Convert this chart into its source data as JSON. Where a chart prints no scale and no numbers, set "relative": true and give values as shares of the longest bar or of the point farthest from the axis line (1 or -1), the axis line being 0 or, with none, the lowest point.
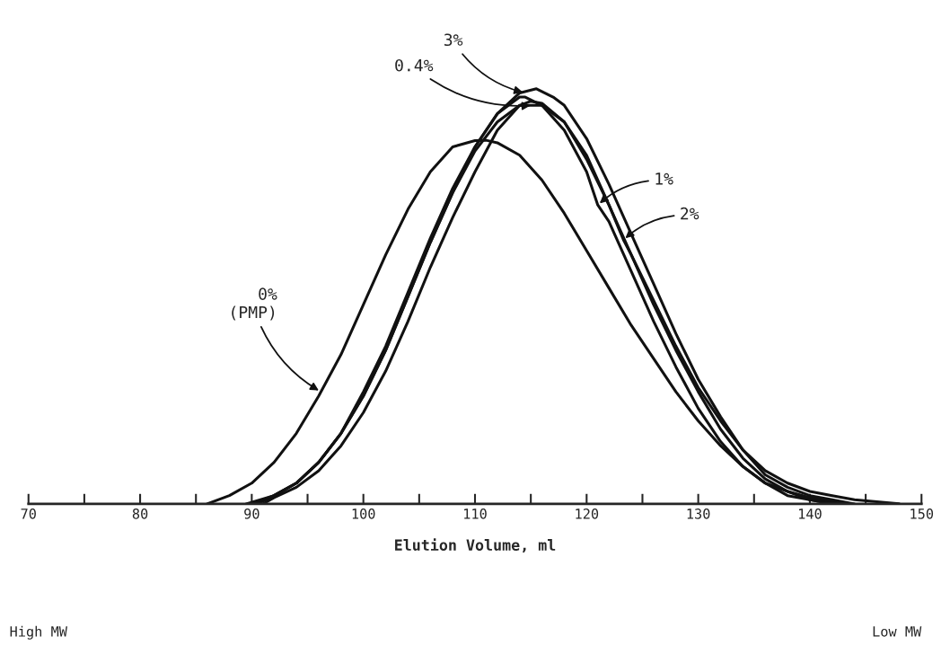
{
  "chart_data": {
    "type": "line",
    "relative": true,
    "xlabel": "Elution Volume, ml",
    "grid": false,
    "legend": false,
    "xlim": [
      70,
      150
    ],
    "xticks": [
      70,
      {
        "value": 75,
        "label": null
      },
      80,
      {
        "value": 85,
        "label": null
      },
      90,
      {
        "value": 95,
        "label": null
      },
      100,
      {
        "value": 105,
        "label": null
      },
      110,
      {
        "value": 115,
        "label": null
      },
      120,
      {
        "value": 125,
        "label": null
      },
      130,
      {
        "value": 135,
        "label": null
      },
      140,
      {
        "value": 145,
        "label": null
      },
      150
    ],
    "series": [
      {
        "color": "#111111",
        "x": [
          86,
          88,
          90,
          92,
          94,
          96,
          98,
          100,
          102,
          104,
          106,
          108,
          110,
          111,
          112,
          114,
          116,
          118,
          120,
          122,
          124,
          126,
          128,
          130,
          132,
          134,
          136,
          138,
          140,
          142
        ],
        "values": [
          0,
          0.02,
          0.05,
          0.1,
          0.17,
          0.26,
          0.36,
          0.48,
          0.6,
          0.71,
          0.8,
          0.86,
          0.875,
          0.876,
          0.87,
          0.84,
          0.78,
          0.7,
          0.61,
          0.52,
          0.43,
          0.35,
          0.27,
          0.2,
          0.14,
          0.09,
          0.05,
          0.03,
          0.01,
          0
        ]
      },
      {
        "color": "#111111",
        "x": [
          90,
          92,
          94,
          96,
          98,
          100,
          102,
          104,
          106,
          108,
          110,
          112,
          114,
          115.5,
          117,
          118,
          120,
          122,
          124,
          126,
          128,
          130,
          132,
          134,
          136,
          138,
          140,
          142,
          144
        ],
        "values": [
          0,
          0.02,
          0.05,
          0.1,
          0.17,
          0.26,
          0.37,
          0.5,
          0.63,
          0.75,
          0.86,
          0.94,
          0.99,
          1.0,
          0.98,
          0.96,
          0.88,
          0.77,
          0.65,
          0.53,
          0.41,
          0.3,
          0.21,
          0.13,
          0.07,
          0.04,
          0.02,
          0.01,
          0
        ]
      },
      {
        "color": "#111111",
        "x": [
          91,
          92,
          94,
          96,
          98,
          100,
          102,
          104,
          106,
          108,
          110,
          112,
          114,
          115,
          116,
          118,
          120,
          122,
          124,
          126,
          128,
          130,
          132,
          134,
          136,
          138,
          140,
          142,
          143
        ],
        "values": [
          0,
          0.015,
          0.04,
          0.08,
          0.14,
          0.22,
          0.32,
          0.44,
          0.57,
          0.69,
          0.8,
          0.9,
          0.96,
          0.97,
          0.965,
          0.92,
          0.84,
          0.72,
          0.6,
          0.48,
          0.37,
          0.27,
          0.18,
          0.11,
          0.06,
          0.03,
          0.015,
          0.005,
          0
        ]
      },
      {
        "color": "#111111",
        "x": [
          90.5,
          92,
          94,
          96,
          98,
          100,
          102,
          104,
          106,
          108,
          110,
          112,
          114,
          114.5,
          116,
          118,
          120,
          121,
          122,
          124,
          126,
          128,
          130,
          132,
          134,
          136,
          138,
          140,
          142
        ],
        "values": [
          0,
          0.02,
          0.05,
          0.1,
          0.17,
          0.27,
          0.38,
          0.51,
          0.64,
          0.76,
          0.86,
          0.94,
          0.98,
          0.98,
          0.96,
          0.9,
          0.8,
          0.72,
          0.68,
          0.56,
          0.44,
          0.33,
          0.23,
          0.15,
          0.09,
          0.05,
          0.02,
          0.01,
          0
        ]
      },
      {
        "color": "#111111",
        "x": [
          89.5,
          92,
          94,
          96,
          98,
          100,
          102,
          104,
          106,
          108,
          110,
          112,
          114,
          116,
          118,
          120,
          122,
          123.3,
          124,
          126,
          128,
          130,
          132,
          134,
          136,
          138,
          140,
          142,
          144,
          146,
          148
        ],
        "values": [
          0,
          0.02,
          0.05,
          0.1,
          0.17,
          0.26,
          0.37,
          0.5,
          0.63,
          0.75,
          0.85,
          0.92,
          0.96,
          0.96,
          0.92,
          0.83,
          0.72,
          0.636,
          0.6,
          0.49,
          0.38,
          0.28,
          0.2,
          0.13,
          0.08,
          0.05,
          0.03,
          0.02,
          0.01,
          0.005,
          0
        ]
      }
    ],
    "annotations": [
      {
        "text": "3%",
        "x": 114.5,
        "y": 0.99
      },
      {
        "text": "0.4%",
        "x": 115.2,
        "y": 0.96
      },
      {
        "text": "1%",
        "x": 121,
        "y": 0.72
      },
      {
        "text": "2%",
        "x": 123.3,
        "y": 0.636
      },
      {
        "text": "0%\n(PMP)",
        "x": 96.2,
        "y": 0.27
      },
      "High MW",
      "Low MW"
    ]
  }
}
